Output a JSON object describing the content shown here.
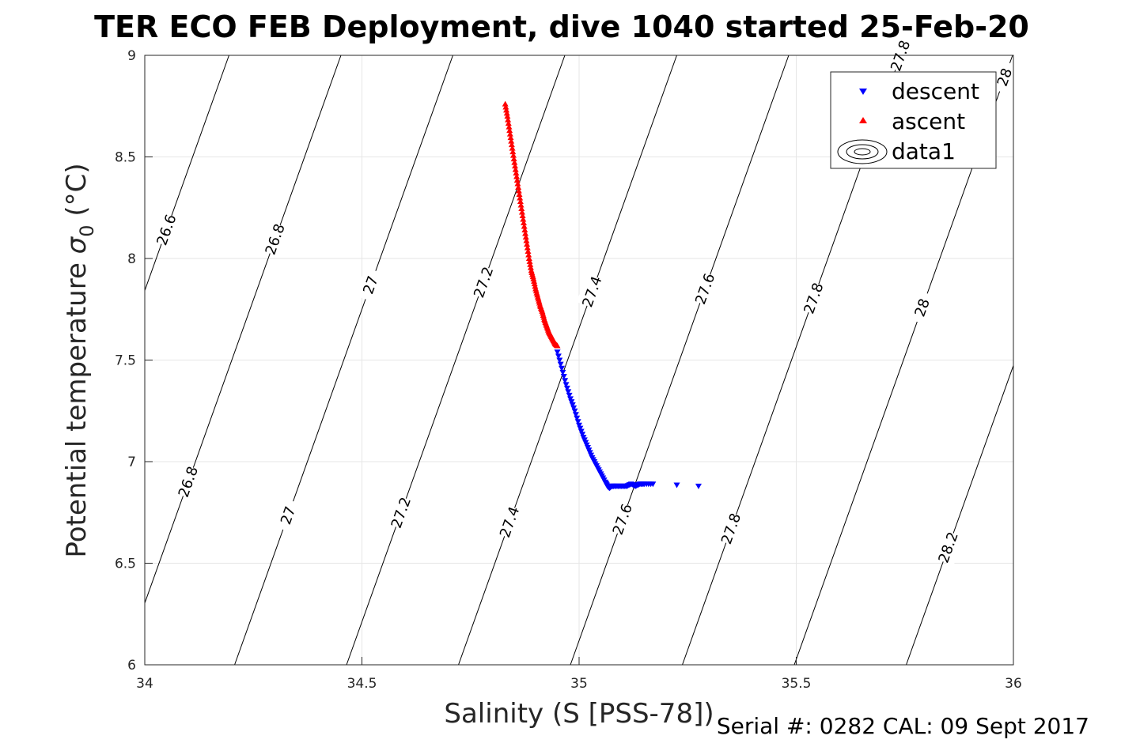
{
  "chart_data": {
    "type": "scatter",
    "title": "TER ECO FEB Deployment, dive 1040 started 25-Feb-20",
    "xlabel": "Salinity (S [PSS-78])",
    "ylabel_main": "Potential temperature ",
    "ylabel_symbol": "σ",
    "ylabel_sub": "0",
    "ylabel_unit": " (°C)",
    "xlim": [
      34,
      36
    ],
    "ylim": [
      6,
      9
    ],
    "xticks": [
      34,
      34.5,
      35,
      35.5,
      36
    ],
    "xtick_labels": [
      "34",
      "34.5",
      "35",
      "35.5",
      "36"
    ],
    "yticks": [
      6,
      6.5,
      7,
      7.5,
      8,
      8.5,
      9
    ],
    "ytick_labels": [
      "6",
      "6.5",
      "7",
      "7.5",
      "8",
      "8.5",
      "9"
    ],
    "grid": true,
    "legend_position": "top-right",
    "series": [
      {
        "name": "descent",
        "marker": "triangle-down",
        "color": "#0000ff",
        "x": [
          34.95,
          34.96,
          34.97,
          34.98,
          34.99,
          35.0,
          35.01,
          35.02,
          35.03,
          35.04,
          35.05,
          35.06,
          35.065,
          35.07,
          35.075,
          35.08,
          35.09,
          35.1,
          35.11,
          35.12,
          35.13,
          35.14,
          35.15,
          35.17,
          35.225,
          35.275
        ],
        "y": [
          7.54,
          7.46,
          7.38,
          7.31,
          7.25,
          7.18,
          7.12,
          7.07,
          7.02,
          6.98,
          6.94,
          6.9,
          6.88,
          6.87,
          6.88,
          6.88,
          6.88,
          6.88,
          6.88,
          6.89,
          6.88,
          6.89,
          6.89,
          6.89,
          6.885,
          6.88
        ]
      },
      {
        "name": "ascent",
        "marker": "triangle-up",
        "color": "#ff0000",
        "x": [
          34.83,
          34.835,
          34.84,
          34.845,
          34.85,
          34.855,
          34.86,
          34.865,
          34.87,
          34.875,
          34.88,
          34.885,
          34.89,
          34.895,
          34.9,
          34.905,
          34.91,
          34.915,
          34.92,
          34.925,
          34.93,
          34.935,
          34.94,
          34.945,
          34.95
        ],
        "y": [
          8.76,
          8.7,
          8.63,
          8.56,
          8.49,
          8.42,
          8.35,
          8.28,
          8.21,
          8.14,
          8.07,
          8.0,
          7.94,
          7.9,
          7.85,
          7.81,
          7.77,
          7.74,
          7.7,
          7.67,
          7.64,
          7.62,
          7.6,
          7.58,
          7.57
        ]
      }
    ],
    "contours": {
      "name": "data1",
      "line_color": "#000000",
      "levels": [
        {
          "value": 26.6,
          "label": "26.6",
          "label_s": [
            34.05,
            34.52
          ]
        },
        {
          "value": 26.8,
          "label": "26.8",
          "label_s": [
            34.1,
            34.3,
            34.48
          ]
        },
        {
          "value": 27.0,
          "label": "27",
          "label_s": [
            34.33,
            34.52,
            34.74
          ]
        },
        {
          "value": 27.2,
          "label": "27.2",
          "label_s": [
            34.59,
            34.78,
            34.97
          ]
        },
        {
          "value": 27.4,
          "label": "27.4",
          "label_s": [
            34.84,
            35.03,
            35.23
          ]
        },
        {
          "value": 27.6,
          "label": "27.6",
          "label_s": [
            35.1,
            35.29,
            35.49
          ]
        },
        {
          "value": 27.8,
          "label": "27.8",
          "label_s": [
            35.35,
            35.54,
            35.74
          ]
        },
        {
          "value": 28.0,
          "label": "28",
          "label_s": [
            35.79,
            35.98
          ]
        },
        {
          "value": 28.2,
          "label": "28.2",
          "label_s": [
            35.85
          ]
        }
      ]
    }
  },
  "footer": {
    "serial_text": "Serial #: 0282  CAL: 09 Sept 2017"
  }
}
